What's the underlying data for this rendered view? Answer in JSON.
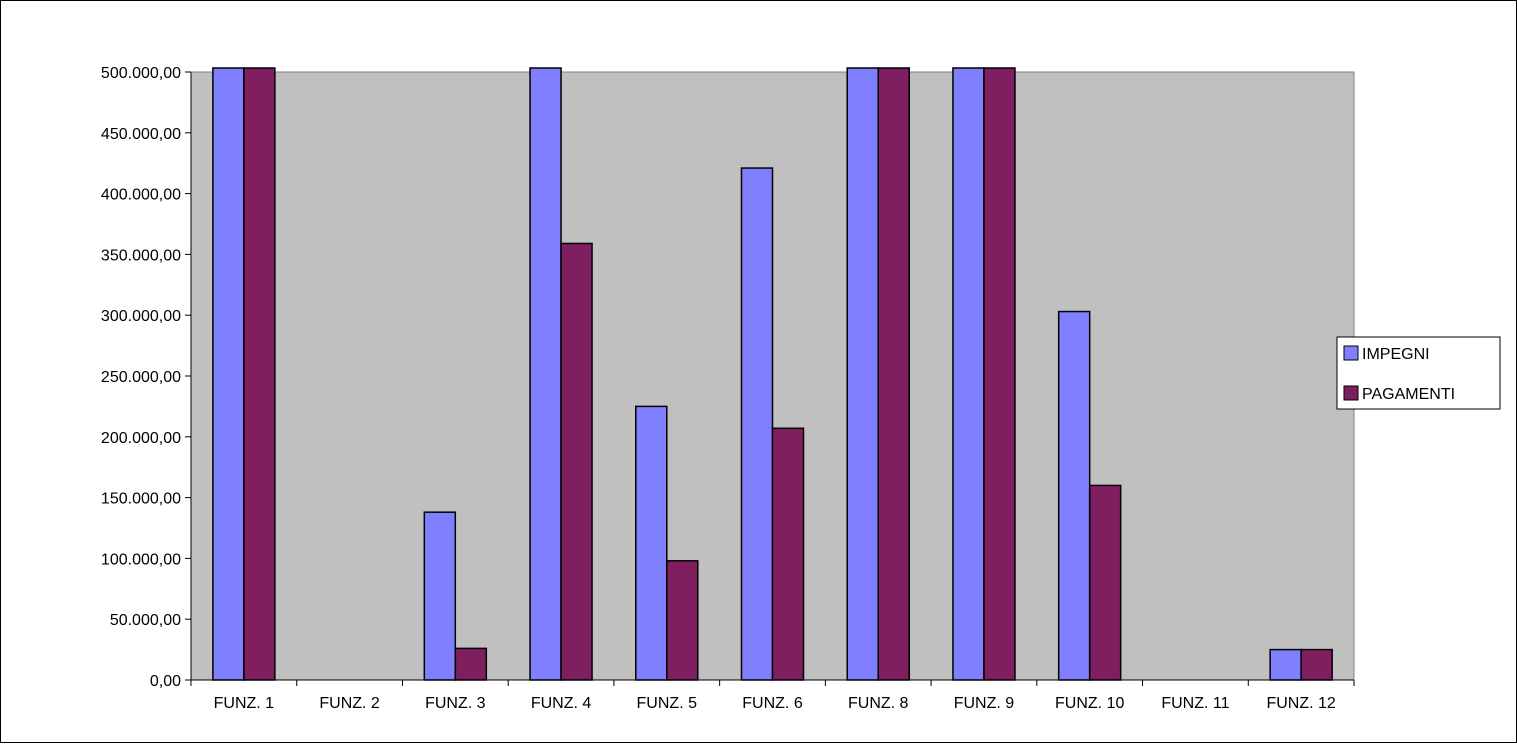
{
  "chart_data": {
    "type": "bar",
    "title": "",
    "xlabel": "",
    "ylabel": "",
    "categories": [
      "FUNZ. 1",
      "FUNZ. 2",
      "FUNZ. 3",
      "FUNZ. 4",
      "FUNZ. 5",
      "FUNZ. 6",
      "FUNZ. 8",
      "FUNZ. 9",
      "FUNZ. 10",
      "FUNZ. 11",
      "FUNZ. 12"
    ],
    "series": [
      {
        "name": "IMPEGNI",
        "color": "#8080FF",
        "values": [
          500000,
          0,
          138000,
          500000,
          225000,
          421000,
          500000,
          500000,
          303000,
          0,
          25000
        ]
      },
      {
        "name": "PAGAMENTI",
        "color": "#7F1F5F",
        "values": [
          500000,
          0,
          26000,
          359000,
          98000,
          207000,
          500000,
          500000,
          160000,
          0,
          25000
        ]
      }
    ],
    "ylim": [
      0,
      500000
    ],
    "yticks": [
      0,
      50000,
      100000,
      150000,
      200000,
      250000,
      300000,
      350000,
      400000,
      450000,
      500000
    ],
    "ytick_labels": [
      "0,00",
      "50.000,00",
      "100.000,00",
      "150.000,00",
      "200.000,00",
      "250.000,00",
      "300.000,00",
      "350.000,00",
      "400.000,00",
      "450.000,00",
      "500.000,00"
    ],
    "plot_background": "#C0C0C0",
    "grid": false,
    "legend_position": "right",
    "values_clipped_at_max": true
  }
}
